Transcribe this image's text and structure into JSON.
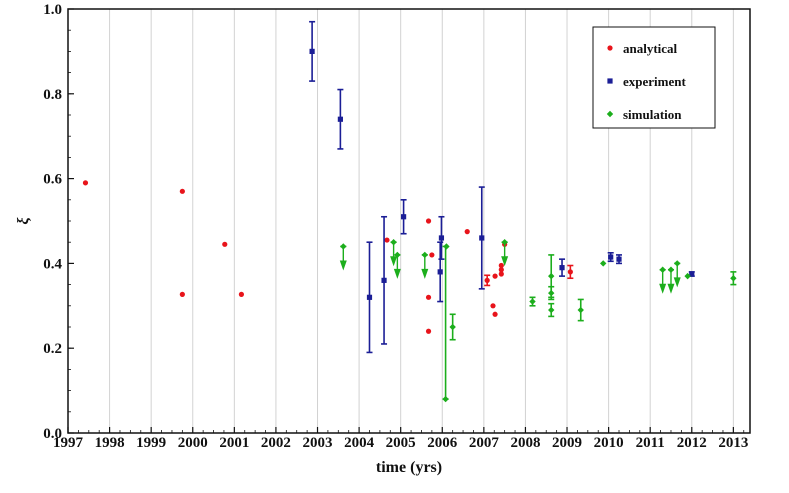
{
  "chart_data": {
    "type": "scatter",
    "title": "",
    "xlabel": "time (yrs)",
    "ylabel": "ξ",
    "xlim": [
      1997,
      2013.4
    ],
    "ylim": [
      0,
      1.0
    ],
    "x_ticks": [
      "1997",
      "1998",
      "1999",
      "2000",
      "2001",
      "2002",
      "2003",
      "2004",
      "2005",
      "2006",
      "2007",
      "2008",
      "2009",
      "2010",
      "2011",
      "2012",
      "2013"
    ],
    "y_ticks": [
      "0.0",
      "0.2",
      "0.4",
      "0.6",
      "0.8",
      "1.0"
    ],
    "grid": "vertical",
    "legend_position": "top-right",
    "series": [
      {
        "name": "analytical",
        "color": "#e8141b",
        "marker": "circle",
        "points": [
          {
            "x": 1997.42,
            "y": 0.59
          },
          {
            "x": 1999.75,
            "y": 0.57
          },
          {
            "x": 1999.75,
            "y": 0.327
          },
          {
            "x": 2000.77,
            "y": 0.445
          },
          {
            "x": 2001.17,
            "y": 0.327
          },
          {
            "x": 2004.67,
            "y": 0.455
          },
          {
            "x": 2005.67,
            "y": 0.5
          },
          {
            "x": 2005.67,
            "y": 0.32
          },
          {
            "x": 2005.67,
            "y": 0.24
          },
          {
            "x": 2005.75,
            "y": 0.42
          },
          {
            "x": 2006.6,
            "y": 0.475
          },
          {
            "x": 2007.08,
            "y": 0.36,
            "err": 0.012
          },
          {
            "x": 2007.22,
            "y": 0.3
          },
          {
            "x": 2007.27,
            "y": 0.28
          },
          {
            "x": 2007.27,
            "y": 0.37
          },
          {
            "x": 2007.42,
            "y": 0.375
          },
          {
            "x": 2007.42,
            "y": 0.385
          },
          {
            "x": 2007.42,
            "y": 0.395
          },
          {
            "x": 2007.5,
            "y": 0.445
          },
          {
            "x": 2009.08,
            "y": 0.38,
            "err": 0.015
          }
        ]
      },
      {
        "name": "experiment",
        "color": "#1b1e96",
        "marker": "square",
        "points": [
          {
            "x": 2002.87,
            "y": 0.9,
            "err": 0.07
          },
          {
            "x": 2003.55,
            "y": 0.74,
            "err": 0.07
          },
          {
            "x": 2004.25,
            "y": 0.32,
            "err": 0.13
          },
          {
            "x": 2004.6,
            "y": 0.36,
            "err": 0.15
          },
          {
            "x": 2005.07,
            "y": 0.51,
            "err": 0.04
          },
          {
            "x": 2005.95,
            "y": 0.38,
            "err": 0.07
          },
          {
            "x": 2005.98,
            "y": 0.46,
            "err": 0.05
          },
          {
            "x": 2006.95,
            "y": 0.46,
            "err": 0.12
          },
          {
            "x": 2008.88,
            "y": 0.39,
            "err": 0.02
          },
          {
            "x": 2010.05,
            "y": 0.415,
            "err": 0.01
          },
          {
            "x": 2010.25,
            "y": 0.41,
            "err": 0.01
          },
          {
            "x": 2012.0,
            "y": 0.375,
            "err": 0.005
          }
        ]
      },
      {
        "name": "simulation",
        "color": "#1cae1c",
        "marker": "diamond",
        "points": [
          {
            "x": 2003.62,
            "y": 0.44,
            "upper_limit": true
          },
          {
            "x": 2004.83,
            "y": 0.45,
            "upper_limit": true
          },
          {
            "x": 2004.92,
            "y": 0.42,
            "upper_limit": true
          },
          {
            "x": 2005.58,
            "y": 0.42,
            "upper_limit": true
          },
          {
            "x": 2006.1,
            "y": 0.44
          },
          {
            "x": 2006.08,
            "y": 0.08,
            "err_up": 0.36
          },
          {
            "x": 2006.25,
            "y": 0.25,
            "err": 0.03
          },
          {
            "x": 2007.5,
            "y": 0.45,
            "upper_limit": true
          },
          {
            "x": 2008.17,
            "y": 0.31,
            "err": 0.01
          },
          {
            "x": 2008.62,
            "y": 0.29,
            "err": 0.015
          },
          {
            "x": 2008.62,
            "y": 0.33,
            "err": 0.015
          },
          {
            "x": 2008.62,
            "y": 0.37,
            "err": 0.05
          },
          {
            "x": 2009.33,
            "y": 0.29,
            "err": 0.025
          },
          {
            "x": 2009.87,
            "y": 0.4
          },
          {
            "x": 2011.3,
            "y": 0.385,
            "upper_limit": true
          },
          {
            "x": 2011.5,
            "y": 0.385,
            "upper_limit": true
          },
          {
            "x": 2011.65,
            "y": 0.4,
            "upper_limit": true
          },
          {
            "x": 2011.9,
            "y": 0.37
          },
          {
            "x": 2013.0,
            "y": 0.365,
            "err": 0.015
          }
        ]
      }
    ]
  }
}
